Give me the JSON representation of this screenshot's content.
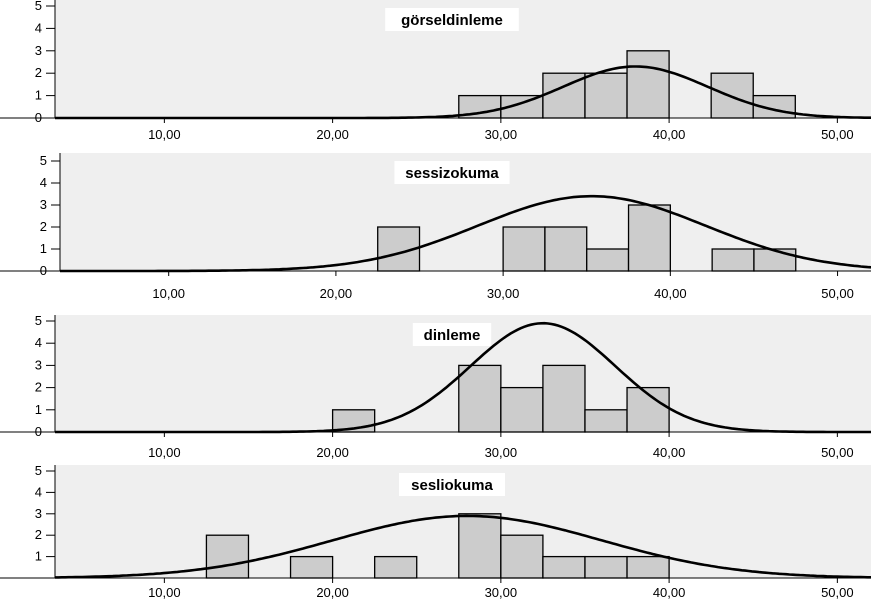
{
  "chart_data": [
    {
      "type": "bar",
      "title": "görseldinleme",
      "x_ticks": [
        "10,00",
        "20,00",
        "30,00",
        "40,00",
        "50,00"
      ],
      "y_ticks": [
        "0",
        "1",
        "2",
        "3",
        "4",
        "5"
      ],
      "xlim": [
        3.5,
        52
      ],
      "ylim": [
        0,
        5
      ],
      "bin_width": 2.5,
      "bins": [
        {
          "start": 27.5,
          "count": 1
        },
        {
          "start": 30,
          "count": 1
        },
        {
          "start": 32.5,
          "count": 2
        },
        {
          "start": 35,
          "count": 2
        },
        {
          "start": 37.5,
          "count": 3
        },
        {
          "start": 42.5,
          "count": 2
        },
        {
          "start": 45,
          "count": 1
        }
      ],
      "normal_curve": {
        "mean": 38,
        "sd": 4.3,
        "peak": 2.3
      },
      "grid": false,
      "colors": {
        "bar": "#cccccc",
        "plot_bg": "#efefef",
        "curve": "#000000"
      }
    },
    {
      "type": "bar",
      "title": "sessizokuma",
      "x_ticks": [
        "10,00",
        "20,00",
        "30,00",
        "40,00",
        "50,00"
      ],
      "y_ticks": [
        "0",
        "1",
        "2",
        "3",
        "4",
        "5"
      ],
      "xlim": [
        3.5,
        52
      ],
      "ylim": [
        0,
        5
      ],
      "bin_width": 2.5,
      "bins": [
        {
          "start": 22.5,
          "count": 2
        },
        {
          "start": 30,
          "count": 2
        },
        {
          "start": 32.5,
          "count": 2
        },
        {
          "start": 35,
          "count": 1
        },
        {
          "start": 37.5,
          "count": 3
        },
        {
          "start": 42.5,
          "count": 1
        },
        {
          "start": 45,
          "count": 1
        }
      ],
      "normal_curve": {
        "mean": 35.3,
        "sd": 6.8,
        "peak": 3.4
      },
      "grid": false,
      "colors": {
        "bar": "#cccccc",
        "plot_bg": "#efefef",
        "curve": "#000000"
      }
    },
    {
      "type": "bar",
      "title": "dinleme",
      "x_ticks": [
        "10,00",
        "20,00",
        "30,00",
        "40,00",
        "50,00"
      ],
      "y_ticks": [
        "0",
        "1",
        "2",
        "3",
        "4",
        "5"
      ],
      "xlim": [
        3.5,
        52
      ],
      "ylim": [
        0,
        5
      ],
      "bin_width": 2.5,
      "bins": [
        {
          "start": 20,
          "count": 1
        },
        {
          "start": 27.5,
          "count": 3
        },
        {
          "start": 30,
          "count": 2
        },
        {
          "start": 32.5,
          "count": 3
        },
        {
          "start": 35,
          "count": 1
        },
        {
          "start": 37.5,
          "count": 2
        }
      ],
      "normal_curve": {
        "mean": 32.5,
        "sd": 4.3,
        "peak": 4.9
      },
      "grid": false,
      "colors": {
        "bar": "#cccccc",
        "plot_bg": "#efefef",
        "curve": "#000000"
      }
    },
    {
      "type": "bar",
      "title": "sesliokuma",
      "x_ticks": [
        "10,00",
        "20,00",
        "30,00",
        "40,00",
        "50,00"
      ],
      "y_ticks": [
        "1",
        "2",
        "3",
        "4",
        "5"
      ],
      "xlim": [
        3.5,
        52
      ],
      "ylim": [
        0,
        5
      ],
      "bin_width": 2.5,
      "bins": [
        {
          "start": 12.5,
          "count": 2
        },
        {
          "start": 17.5,
          "count": 1
        },
        {
          "start": 22.5,
          "count": 1
        },
        {
          "start": 27.5,
          "count": 3
        },
        {
          "start": 30,
          "count": 2
        },
        {
          "start": 32.5,
          "count": 1
        },
        {
          "start": 35,
          "count": 1
        },
        {
          "start": 37.5,
          "count": 1
        }
      ],
      "normal_curve": {
        "mean": 28,
        "sd": 8,
        "peak": 2.9
      },
      "grid": false,
      "colors": {
        "bar": "#cccccc",
        "plot_bg": "#efefef",
        "curve": "#000000"
      }
    }
  ]
}
